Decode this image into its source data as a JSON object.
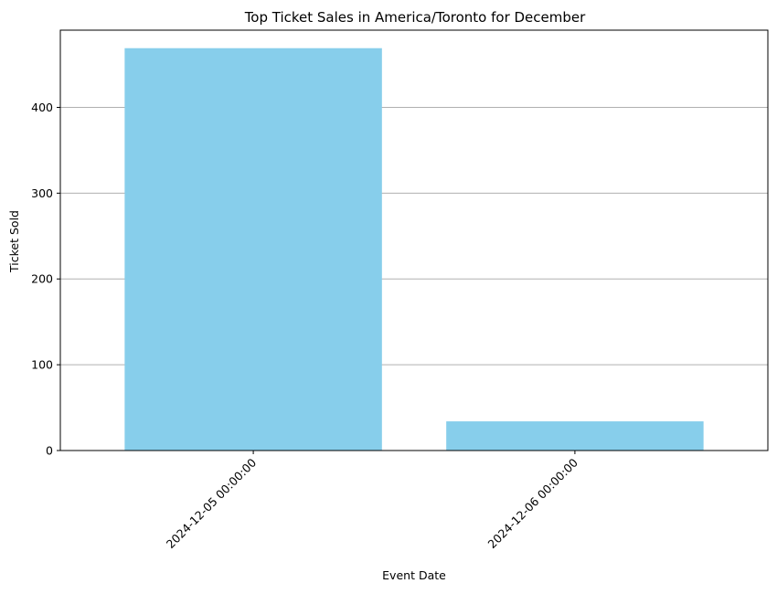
{
  "chart_data": {
    "type": "bar",
    "title": "Top Ticket Sales in America/Toronto for December",
    "xlabel": "Event Date",
    "ylabel": "Ticket Sold",
    "categories": [
      "2024-12-05 00:00:00",
      "2024-12-06 00:00:00"
    ],
    "values": [
      469,
      34
    ],
    "ylim": [
      0,
      490
    ],
    "yticks": [
      0,
      100,
      200,
      300,
      400
    ],
    "grid": "y",
    "bar_color": "#87ceeb",
    "grid_color": "#b0b0b0"
  }
}
